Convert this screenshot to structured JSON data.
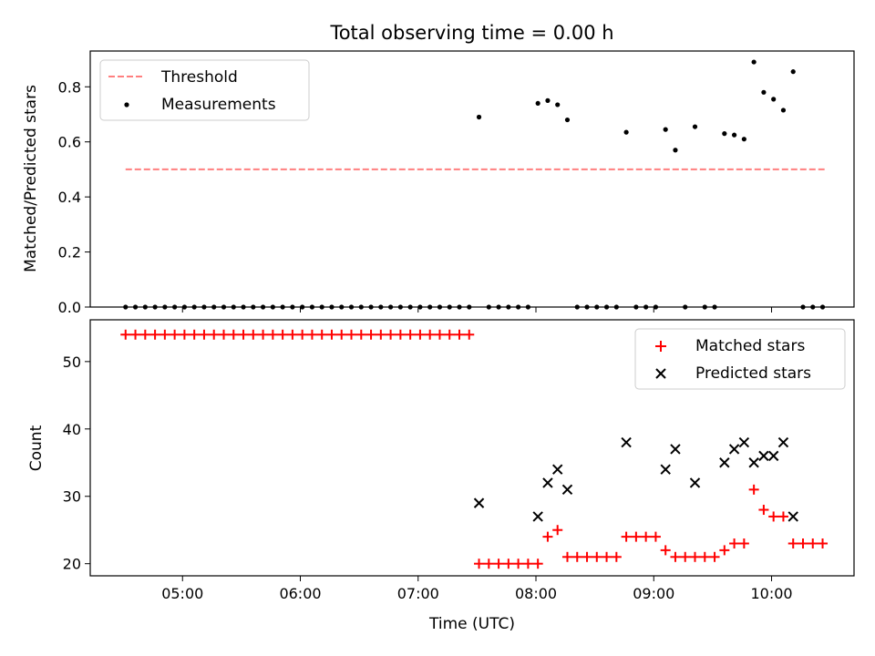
{
  "chart_data": {
    "title": "Total observing time = 0.00 h",
    "xlabel": "Time (UTC)",
    "x_ticks": [
      "05:00",
      "06:00",
      "07:00",
      "08:00",
      "09:00",
      "10:00"
    ],
    "top": {
      "type": "scatter",
      "ylabel": "Matched/Predicted stars",
      "ylim": [
        0,
        0.93
      ],
      "y_ticks": [
        "0.0",
        "0.2",
        "0.4",
        "0.6",
        "0.8"
      ],
      "legend_position": "top-left",
      "threshold": {
        "name": "Threshold",
        "value": 0.5,
        "x_range": [
          "04:31",
          "10:27"
        ],
        "color": "#ff7f7f"
      },
      "measurements": {
        "name": "Measurements",
        "color": "#000000",
        "x": [
          "04:31",
          "04:36",
          "04:41",
          "04:46",
          "04:51",
          "04:56",
          "05:01",
          "05:06",
          "05:11",
          "05:16",
          "05:21",
          "05:26",
          "05:31",
          "05:36",
          "05:41",
          "05:46",
          "05:51",
          "05:56",
          "06:01",
          "06:06",
          "06:11",
          "06:16",
          "06:21",
          "06:26",
          "06:31",
          "06:36",
          "06:41",
          "06:46",
          "06:51",
          "06:56",
          "07:01",
          "07:06",
          "07:11",
          "07:16",
          "07:21",
          "07:26",
          "07:31",
          "07:36",
          "07:41",
          "07:46",
          "07:51",
          "07:56",
          "08:01",
          "08:06",
          "08:11",
          "08:16",
          "08:21",
          "08:26",
          "08:31",
          "08:36",
          "08:41",
          "08:46",
          "08:51",
          "08:56",
          "09:01",
          "09:06",
          "09:11",
          "09:16",
          "09:21",
          "09:26",
          "09:31",
          "09:36",
          "09:41",
          "09:46",
          "09:51",
          "09:56",
          "10:01",
          "10:06",
          "10:11",
          "10:16",
          "10:21",
          "10:26"
        ],
        "y": [
          0,
          0,
          0,
          0,
          0,
          0,
          0,
          0,
          0,
          0,
          0,
          0,
          0,
          0,
          0,
          0,
          0,
          0,
          0,
          0,
          0,
          0,
          0,
          0,
          0,
          0,
          0,
          0,
          0,
          0,
          0,
          0,
          0,
          0,
          0,
          0,
          0.69,
          0,
          0,
          0,
          0,
          0,
          0.74,
          0.75,
          0.735,
          0.68,
          0,
          0,
          0,
          0,
          0,
          0.635,
          0,
          0,
          0,
          0.645,
          0.57,
          0,
          0.655,
          0,
          0,
          0.63,
          0.625,
          0.61,
          0.89,
          0.78,
          0.755,
          0.715,
          0.855,
          0,
          0,
          0
        ]
      }
    },
    "bottom": {
      "type": "scatter",
      "ylabel": "Count",
      "ylim": [
        18.2,
        56.2
      ],
      "y_ticks": [
        "20",
        "30",
        "40",
        "50"
      ],
      "legend_position": "top-right",
      "matched": {
        "name": "Matched stars",
        "color": "#ff0000",
        "x": [
          "04:31",
          "04:36",
          "04:41",
          "04:46",
          "04:51",
          "04:56",
          "05:01",
          "05:06",
          "05:11",
          "05:16",
          "05:21",
          "05:26",
          "05:31",
          "05:36",
          "05:41",
          "05:46",
          "05:51",
          "05:56",
          "06:01",
          "06:06",
          "06:11",
          "06:16",
          "06:21",
          "06:26",
          "06:31",
          "06:36",
          "06:41",
          "06:46",
          "06:51",
          "06:56",
          "07:01",
          "07:06",
          "07:11",
          "07:16",
          "07:21",
          "07:26",
          "07:31",
          "07:36",
          "07:41",
          "07:46",
          "07:51",
          "07:56",
          "08:01",
          "08:06",
          "08:11",
          "08:16",
          "08:21",
          "08:26",
          "08:31",
          "08:36",
          "08:41",
          "08:46",
          "08:51",
          "08:56",
          "09:01",
          "09:06",
          "09:11",
          "09:16",
          "09:21",
          "09:26",
          "09:31",
          "09:36",
          "09:41",
          "09:46",
          "09:51",
          "09:56",
          "10:01",
          "10:06",
          "10:11",
          "10:16",
          "10:21",
          "10:26"
        ],
        "y": [
          54,
          54,
          54,
          54,
          54,
          54,
          54,
          54,
          54,
          54,
          54,
          54,
          54,
          54,
          54,
          54,
          54,
          54,
          54,
          54,
          54,
          54,
          54,
          54,
          54,
          54,
          54,
          54,
          54,
          54,
          54,
          54,
          54,
          54,
          54,
          54,
          20,
          20,
          20,
          20,
          20,
          20,
          20,
          24,
          25,
          21,
          21,
          21,
          21,
          21,
          21,
          24,
          24,
          24,
          24,
          22,
          21,
          21,
          21,
          21,
          21,
          22,
          23,
          23,
          31,
          28,
          27,
          27,
          23,
          23,
          23,
          23
        ]
      },
      "predicted": {
        "name": "Predicted stars",
        "color": "#000000",
        "x": [
          "07:31",
          "08:01",
          "08:06",
          "08:11",
          "08:16",
          "08:46",
          "09:06",
          "09:11",
          "09:21",
          "09:36",
          "09:41",
          "09:46",
          "09:51",
          "09:56",
          "10:01",
          "10:06",
          "10:11"
        ],
        "y": [
          29,
          27,
          32,
          34,
          31,
          38,
          34,
          37,
          32,
          35,
          37,
          38,
          35,
          36,
          36,
          38,
          27
        ]
      }
    }
  }
}
